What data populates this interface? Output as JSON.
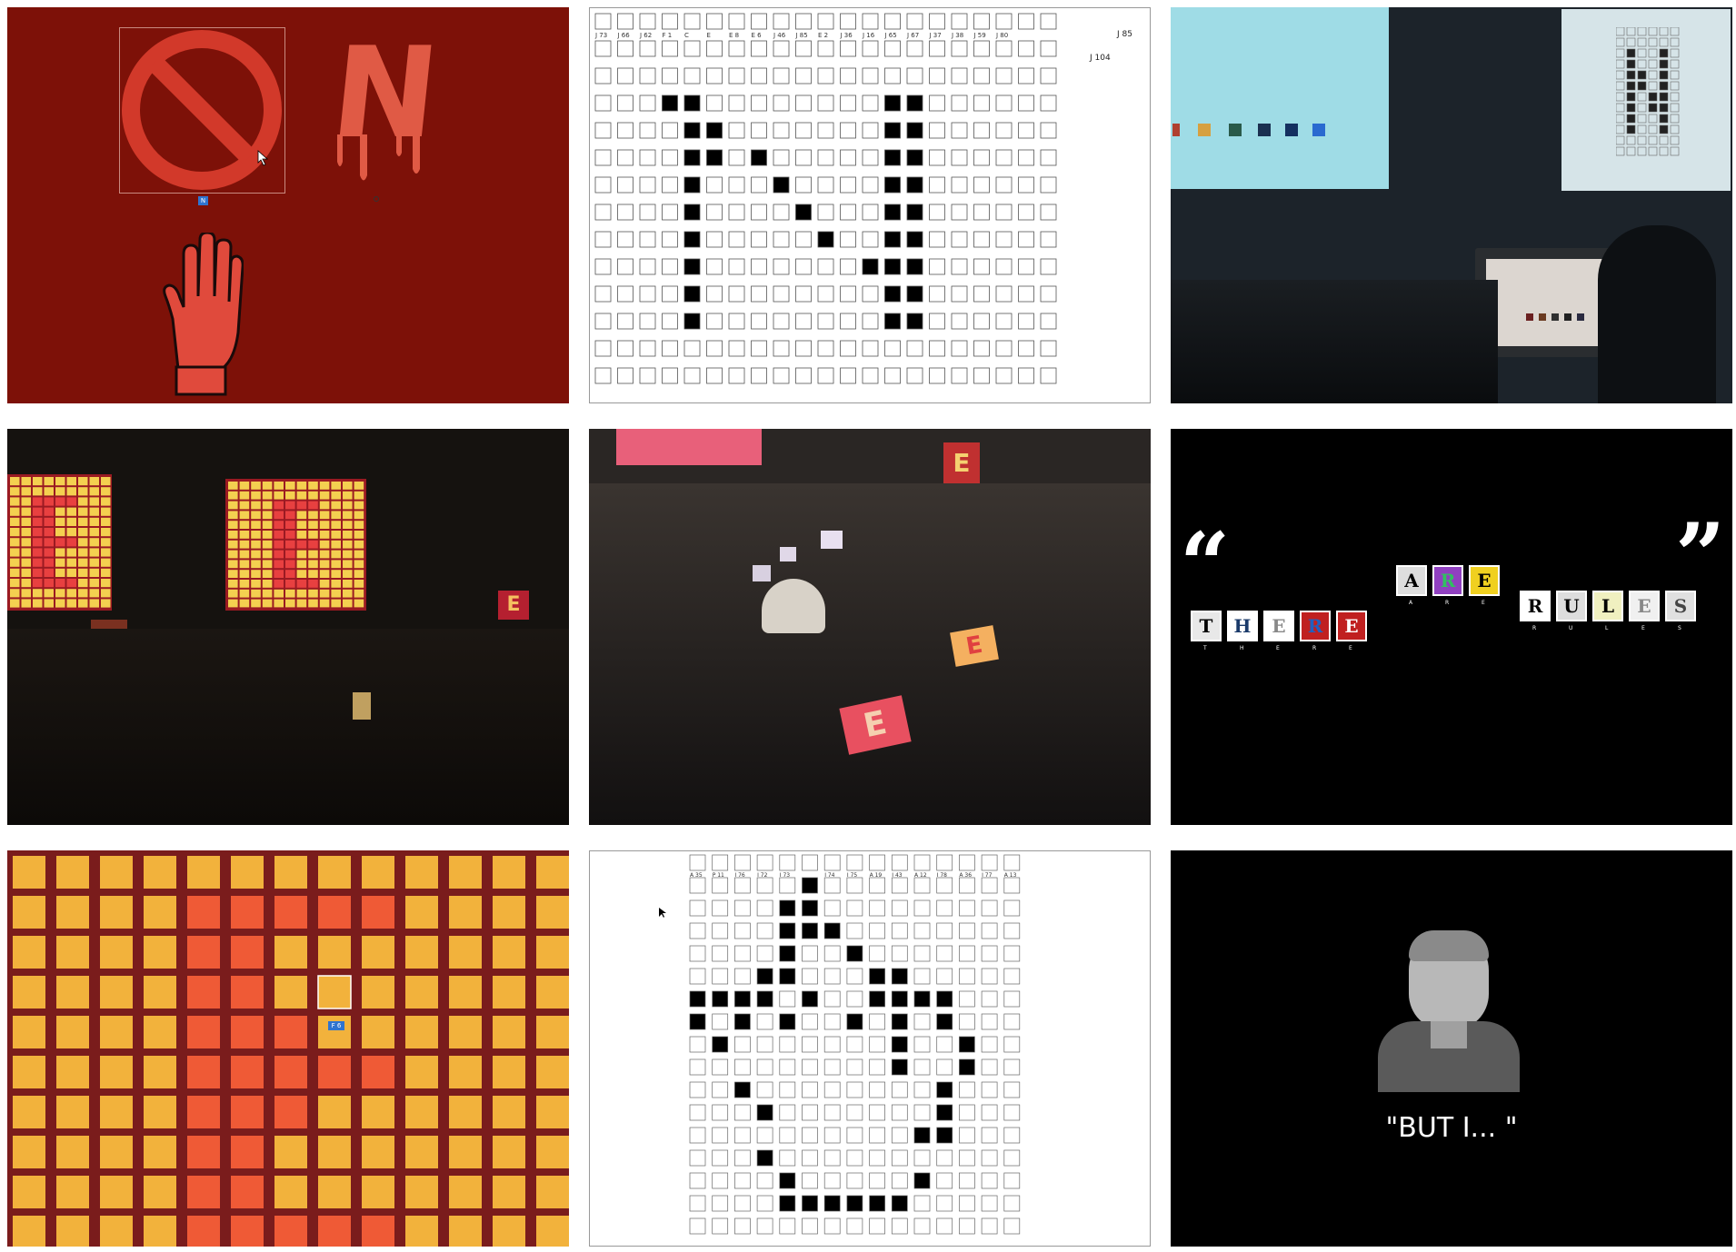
{
  "panels": {
    "p1": {
      "letter": "N",
      "badge": "N"
    },
    "p2": {
      "header_labels": [
        "J 73",
        "J 66",
        "J 62",
        "F 1",
        "C",
        "E",
        "E 8",
        "E 6",
        "J 46",
        "J 85",
        "E 2",
        "J 36",
        "J 16",
        "J 65",
        "J 67",
        "J 37",
        "J 38",
        "J 59",
        "J 80"
      ],
      "side_label": "J 85",
      "side_label2": "J 104"
    },
    "p3": {},
    "p4": {
      "letter": "E"
    },
    "p5": {
      "letter": "E"
    },
    "p6": {
      "open_quote": "“",
      "close_quote": "”",
      "row1": [
        "T",
        "H",
        "E",
        "R",
        "E"
      ],
      "row2": [
        "A",
        "R",
        "E"
      ],
      "row3": [
        "R",
        "U",
        "L",
        "E",
        "S"
      ]
    },
    "p7": {
      "badge": "F 6"
    },
    "p8": {
      "top_labels": [
        "A 35",
        "P 11",
        "I 76",
        "I 72",
        "I 73",
        "",
        "I 74",
        "I 75",
        "A 19",
        "I 43",
        "A 12",
        "I 78",
        "A 36",
        "I 77",
        "A 13"
      ]
    },
    "p9": {
      "caption": "\"BUT I... \""
    }
  },
  "colors": {
    "dark_red": "#7d1108",
    "sign_red": "#d2392a",
    "orange": "#f2b23c",
    "orange_hi": "#ef5a36",
    "grid_bg": "#7a1c1c"
  }
}
